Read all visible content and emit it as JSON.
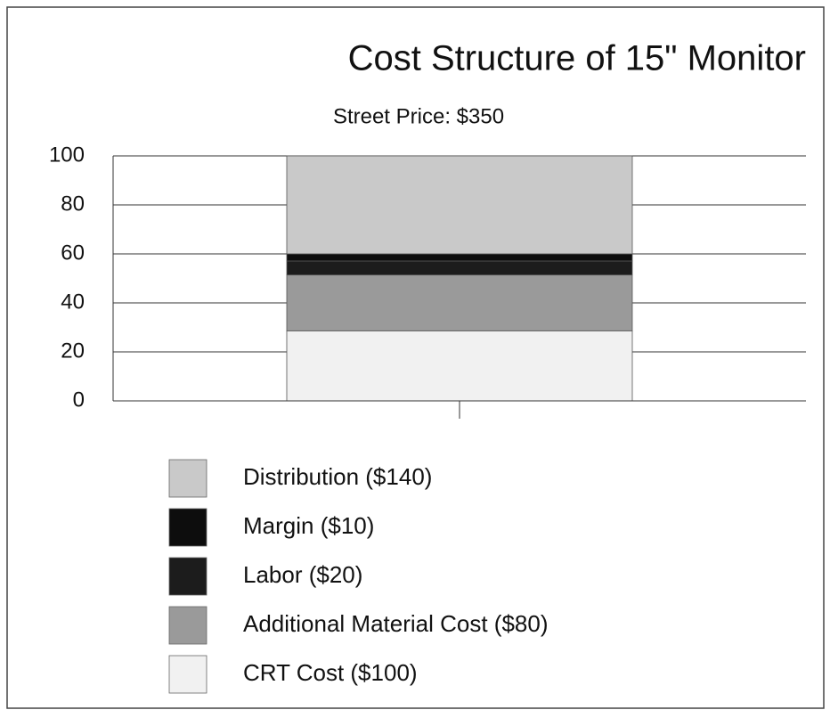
{
  "chart_data": {
    "type": "stacked_bar",
    "title": "Cost Structure of 15\" Monitor",
    "subtitle": "Street Price:  $350",
    "categories": [
      null
    ],
    "series": [
      {
        "name": "CRT Cost ($100)",
        "color": "#f1f1f1",
        "values": [
          28.6
        ]
      },
      {
        "name": "Additional Material Cost ($80)",
        "color": "#9a9a9a",
        "values": [
          22.8
        ]
      },
      {
        "name": "Labor ($20)",
        "color": "#1c1c1c",
        "values": [
          5.7
        ]
      },
      {
        "name": "Margin ($10)",
        "color": "#0d0d0d",
        "values": [
          2.9
        ]
      },
      {
        "name": "Distribution ($140)",
        "color": "#c9c9c9",
        "values": [
          40
        ]
      }
    ],
    "ylim": [
      0,
      100
    ],
    "yticks": [
      0,
      20,
      40,
      60,
      80,
      100
    ],
    "grid": true
  }
}
